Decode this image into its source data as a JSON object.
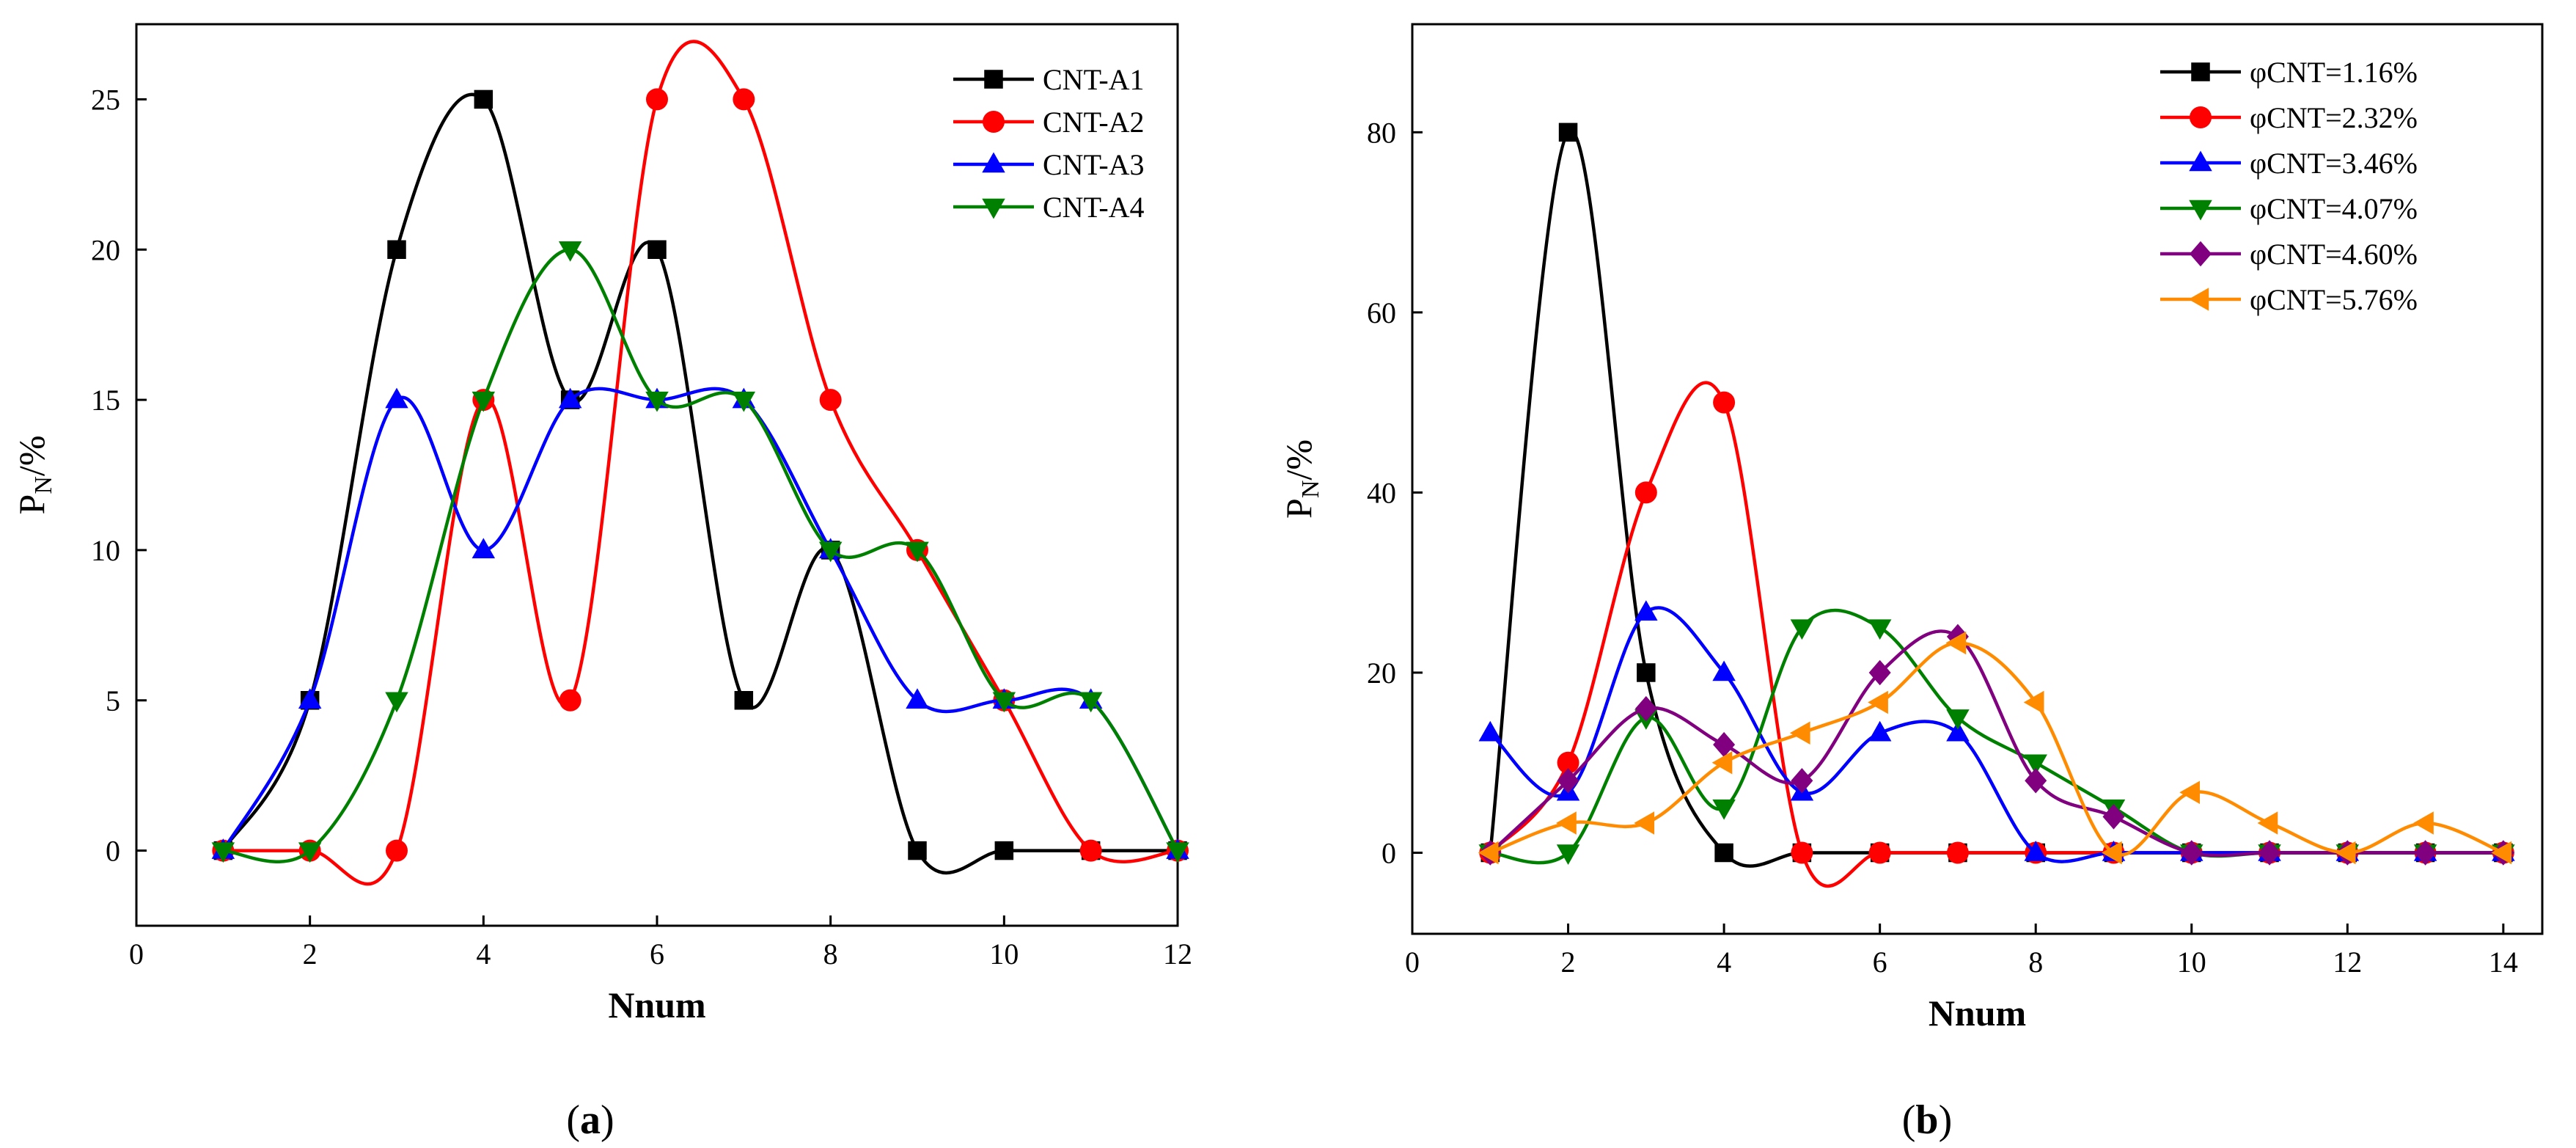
{
  "chart_data": [
    {
      "type": "line",
      "panel_label": "a",
      "xlabel": "Nnum",
      "ylabel": "P",
      "ylabel_sub": "N",
      "ylabel_suffix": "/%",
      "xlim": [
        0,
        12
      ],
      "ylim": [
        -2.5,
        27.5
      ],
      "xticks": [
        0,
        2,
        4,
        6,
        8,
        10,
        12
      ],
      "yticks": [
        0,
        5,
        10,
        15,
        20,
        25
      ],
      "legend_position": "top-right",
      "series": [
        {
          "name": "CNT-A1",
          "color": "#000000",
          "marker": "square",
          "x": [
            1,
            2,
            3,
            4,
            5,
            6,
            7,
            8,
            9,
            10,
            11,
            12
          ],
          "y": [
            0,
            5,
            20,
            25,
            15,
            20,
            5,
            10,
            0,
            0,
            0,
            0
          ]
        },
        {
          "name": "CNT-A2",
          "color": "#ff0000",
          "marker": "circle",
          "x": [
            1,
            2,
            3,
            4,
            5,
            6,
            7,
            8,
            9,
            10,
            11,
            12
          ],
          "y": [
            0,
            0,
            0,
            15,
            5,
            25,
            25,
            15,
            10,
            5,
            0,
            0
          ]
        },
        {
          "name": "CNT-A3",
          "color": "#0000ff",
          "marker": "triangle-up",
          "x": [
            1,
            2,
            3,
            4,
            5,
            6,
            7,
            8,
            9,
            10,
            11,
            12
          ],
          "y": [
            0,
            5,
            15,
            10,
            15,
            15,
            15,
            10,
            5,
            5,
            5,
            0
          ]
        },
        {
          "name": "CNT-A4",
          "color": "#008000",
          "marker": "triangle-down",
          "x": [
            1,
            2,
            3,
            4,
            5,
            6,
            7,
            8,
            9,
            10,
            11,
            12
          ],
          "y": [
            0,
            0,
            5,
            15,
            20,
            15,
            15,
            10,
            10,
            5,
            5,
            0
          ]
        }
      ]
    },
    {
      "type": "line",
      "panel_label": "b",
      "xlabel": "Nnum",
      "ylabel": "P",
      "ylabel_sub": "N",
      "ylabel_suffix": "/%",
      "xlim": [
        0,
        14.5
      ],
      "ylim": [
        -9,
        92
      ],
      "xticks": [
        0,
        2,
        4,
        6,
        8,
        10,
        12,
        14
      ],
      "yticks": [
        0,
        20,
        40,
        60,
        80
      ],
      "legend_position": "top-right",
      "series": [
        {
          "name": "φCNT=1.16%",
          "color": "#000000",
          "marker": "square",
          "x": [
            1,
            2,
            3,
            4,
            5,
            6,
            7,
            8,
            9,
            10,
            11,
            12,
            13,
            14
          ],
          "y": [
            0,
            80,
            20,
            0,
            0,
            0,
            0,
            0,
            0,
            0,
            0,
            0,
            0,
            0
          ]
        },
        {
          "name": "φCNT=2.32%",
          "color": "#ff0000",
          "marker": "circle",
          "x": [
            1,
            2,
            3,
            4,
            5,
            6,
            7,
            8,
            9,
            10,
            11,
            12,
            13,
            14
          ],
          "y": [
            0,
            10,
            40,
            50,
            0,
            0,
            0,
            0,
            0,
            0,
            0,
            0,
            0,
            0
          ]
        },
        {
          "name": "φCNT=3.46%",
          "color": "#0000ff",
          "marker": "triangle-up",
          "x": [
            1,
            2,
            3,
            4,
            5,
            6,
            7,
            8,
            9,
            10,
            11,
            12,
            13,
            14
          ],
          "y": [
            13.3,
            6.7,
            26.7,
            20,
            6.7,
            13.3,
            13.3,
            0,
            0,
            0,
            0,
            0,
            0,
            0
          ]
        },
        {
          "name": "φCNT=4.07%",
          "color": "#008000",
          "marker": "triangle-down",
          "x": [
            1,
            2,
            3,
            4,
            5,
            6,
            7,
            8,
            9,
            10,
            11,
            12,
            13,
            14
          ],
          "y": [
            0,
            0,
            15,
            5,
            25,
            25,
            15,
            10,
            5,
            0,
            0,
            0,
            0,
            0
          ]
        },
        {
          "name": "φCNT=4.60%",
          "color": "#800080",
          "marker": "diamond",
          "x": [
            1,
            2,
            3,
            4,
            5,
            6,
            7,
            8,
            9,
            10,
            11,
            12,
            13,
            14
          ],
          "y": [
            0,
            8,
            16,
            12,
            8,
            20,
            24,
            8,
            4,
            0,
            0,
            0,
            0,
            0
          ]
        },
        {
          "name": "φCNT=5.76%",
          "color": "#ff8c00",
          "marker": "triangle-left",
          "x": [
            1,
            2,
            3,
            4,
            5,
            6,
            7,
            8,
            9,
            10,
            11,
            12,
            13,
            14
          ],
          "y": [
            0,
            3.3,
            3.3,
            10,
            13.3,
            16.7,
            23.3,
            16.7,
            0,
            6.7,
            3.3,
            0,
            3.3,
            0
          ]
        }
      ]
    }
  ],
  "captions": {
    "a": "a",
    "b": "b",
    "open_paren": "(",
    "close_paren": ")"
  }
}
